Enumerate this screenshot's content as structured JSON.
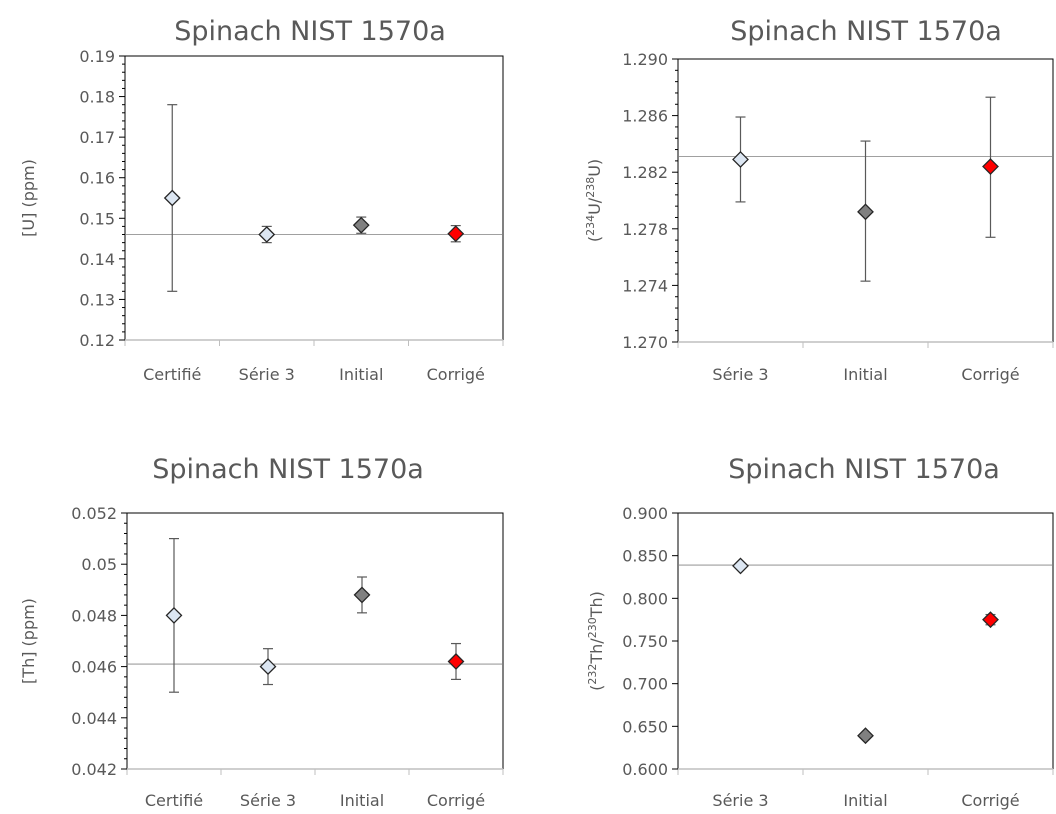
{
  "chart_data": [
    {
      "type": "scatter",
      "title": "Spinach NIST 1570a",
      "ylabel": "[U] (ppm)",
      "ylabel_parts": [],
      "categories": [
        "Certifié",
        "Série 3",
        "Initial",
        "Corrigé"
      ],
      "yticks": [
        "0.12",
        "0.13",
        "0.14",
        "0.15",
        "0.16",
        "0.17",
        "0.18",
        "0.19"
      ],
      "ylim": [
        0.12,
        0.19
      ],
      "minor_ticks": true,
      "reference_line": 0.146,
      "points": [
        {
          "category": "Certifié",
          "y": 0.155,
          "err_low": 0.132,
          "err_high": 0.178,
          "color": "#dce6f2"
        },
        {
          "category": "Série 3",
          "y": 0.146,
          "err_low": 0.144,
          "err_high": 0.148,
          "color": "#dce6f2"
        },
        {
          "category": "Initial",
          "y": 0.1483,
          "err_low": 0.1463,
          "err_high": 0.1503,
          "color": "#808080"
        },
        {
          "category": "Corrigé",
          "y": 0.1462,
          "err_low": 0.1442,
          "err_high": 0.1482,
          "color": "#ff0000"
        }
      ]
    },
    {
      "type": "scatter",
      "title": "Spinach NIST 1570a",
      "ylabel": "",
      "ylabel_parts": [
        {
          "t": "("
        },
        {
          "t": "234",
          "sup": true
        },
        {
          "t": "U/"
        },
        {
          "t": "238",
          "sup": true
        },
        {
          "t": "U)"
        }
      ],
      "categories": [
        "Série 3",
        "Initial",
        "Corrigé"
      ],
      "yticks": [
        "1.270",
        "1.274",
        "1.278",
        "1.282",
        "1.286",
        "1.290"
      ],
      "ylim": [
        1.27,
        1.29
      ],
      "minor_ticks": true,
      "reference_line": 1.2831,
      "points": [
        {
          "category": "Série 3",
          "y": 1.2829,
          "err_low": 1.2799,
          "err_high": 1.2859,
          "color": "#dce6f2"
        },
        {
          "category": "Initial",
          "y": 1.2792,
          "err_low": 1.2743,
          "err_high": 1.2842,
          "color": "#808080"
        },
        {
          "category": "Corrigé",
          "y": 1.2824,
          "err_low": 1.2774,
          "err_high": 1.2873,
          "color": "#ff0000"
        }
      ]
    },
    {
      "type": "scatter",
      "title": "Spinach NIST 1570a",
      "ylabel": "[Th] (ppm)",
      "ylabel_parts": [],
      "categories": [
        "Certifié",
        "Série 3",
        "Initial",
        "Corrigé"
      ],
      "yticks": [
        "0.042",
        "0.044",
        "0.046",
        "0.048",
        "0.05",
        "0.052"
      ],
      "ylim": [
        0.042,
        0.052
      ],
      "minor_ticks": true,
      "reference_line": 0.0461,
      "points": [
        {
          "category": "Certifié",
          "y": 0.048,
          "err_low": 0.045,
          "err_high": 0.051,
          "color": "#dce6f2"
        },
        {
          "category": "Série 3",
          "y": 0.046,
          "err_low": 0.0453,
          "err_high": 0.0467,
          "color": "#dce6f2"
        },
        {
          "category": "Initial",
          "y": 0.0488,
          "err_low": 0.0481,
          "err_high": 0.0495,
          "color": "#808080"
        },
        {
          "category": "Corrigé",
          "y": 0.0462,
          "err_low": 0.0455,
          "err_high": 0.0469,
          "color": "#ff0000"
        }
      ]
    },
    {
      "type": "scatter",
      "title": "Spinach NIST 1570a",
      "ylabel": "",
      "ylabel_parts": [
        {
          "t": "("
        },
        {
          "t": "232",
          "sup": true
        },
        {
          "t": "Th/"
        },
        {
          "t": "230",
          "sup": true
        },
        {
          "t": "Th)"
        }
      ],
      "categories": [
        "Série 3",
        "Initial",
        "Corrigé"
      ],
      "yticks": [
        "0.600",
        "0.650",
        "0.700",
        "0.750",
        "0.800",
        "0.850",
        "0.900"
      ],
      "ylim": [
        0.6,
        0.9
      ],
      "minor_ticks": false,
      "reference_line": 0.839,
      "points": [
        {
          "category": "Série 3",
          "y": 0.838,
          "err_low": 0.838,
          "err_high": 0.838,
          "color": "#dce6f2"
        },
        {
          "category": "Initial",
          "y": 0.639,
          "err_low": 0.639,
          "err_high": 0.639,
          "color": "#808080"
        },
        {
          "category": "Corrigé",
          "y": 0.775,
          "err_low": 0.769,
          "err_high": 0.781,
          "color": "#ff0000"
        }
      ]
    }
  ]
}
